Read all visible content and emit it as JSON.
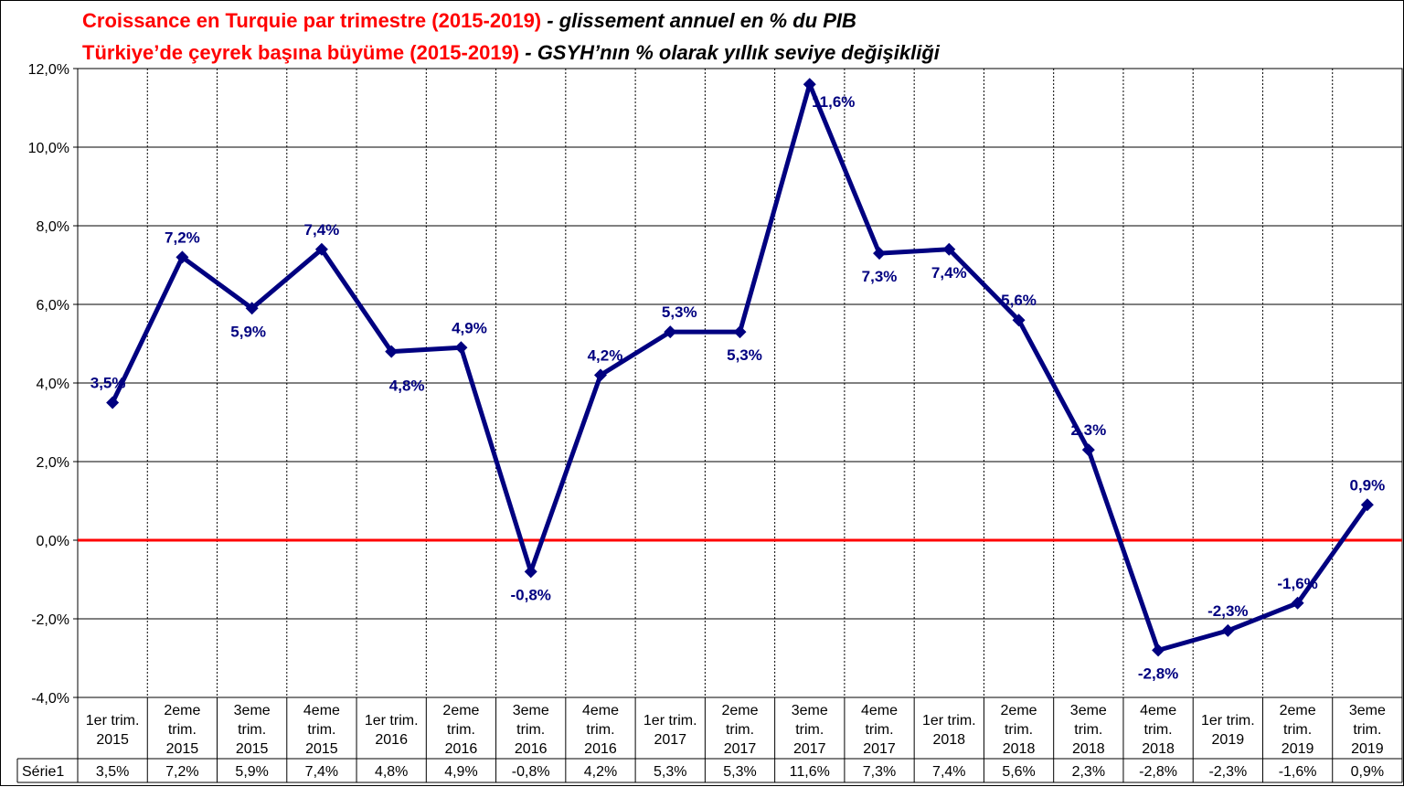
{
  "title_lines": [
    {
      "main": "Croissance  en Turquie par trimestre (2015-2019)",
      "sub": " - glissement annuel en % du PIB"
    },
    {
      "main": "Türkiye’de çeyrek başına büyüme (2015-2019)",
      "sub": " - GSYH’nın % olarak yıllık seviye değişikliği"
    }
  ],
  "colors": {
    "series": "#000080",
    "zero_line": "#ff0000",
    "grid": "#000000",
    "title_main": "#ff0000"
  },
  "chart_data": {
    "type": "line",
    "ylim": [
      -4,
      12
    ],
    "y_ticks": [
      "-4,0%",
      "-2,0%",
      "0,0%",
      "2,0%",
      "4,0%",
      "6,0%",
      "8,0%",
      "10,0%",
      "12,0%"
    ],
    "grid": true,
    "categories": [
      [
        "1er trim.",
        "2015"
      ],
      [
        "2eme",
        "trim.",
        "2015"
      ],
      [
        "3eme",
        "trim.",
        "2015"
      ],
      [
        "4eme",
        "trim.",
        "2015"
      ],
      [
        "1er trim.",
        "2016"
      ],
      [
        "2eme",
        "trim.",
        "2016"
      ],
      [
        "3eme",
        "trim.",
        "2016"
      ],
      [
        "4eme",
        "trim.",
        "2016"
      ],
      [
        "1er trim.",
        "2017"
      ],
      [
        "2eme",
        "trim.",
        "2017"
      ],
      [
        "3eme",
        "trim.",
        "2017"
      ],
      [
        "4eme",
        "trim.",
        "2017"
      ],
      [
        "1er trim.",
        "2018"
      ],
      [
        "2eme",
        "trim.",
        "2018"
      ],
      [
        "3eme",
        "trim.",
        "2018"
      ],
      [
        "4eme",
        "trim.",
        "2018"
      ],
      [
        "1er trim.",
        "2019"
      ],
      [
        "2eme",
        "trim.",
        "2019"
      ],
      [
        "3eme",
        "trim.",
        "2019"
      ]
    ],
    "series": [
      {
        "name": "Série1",
        "values": [
          3.5,
          7.2,
          5.9,
          7.4,
          4.8,
          4.9,
          -0.8,
          4.2,
          5.3,
          5.3,
          11.6,
          7.3,
          7.4,
          5.6,
          2.3,
          -2.8,
          -2.3,
          -1.6,
          0.9
        ],
        "labels": [
          "3,5%",
          "7,2%",
          "5,9%",
          "7,4%",
          "4,8%",
          "4,9%",
          "-0,8%",
          "4,2%",
          "5,3%",
          "5,3%",
          "11,6%",
          "7,3%",
          "7,4%",
          "5,6%",
          "2,3%",
          "-2,8%",
          "-2,3%",
          "-1,6%",
          "0,9%"
        ]
      }
    ],
    "data_table": true
  }
}
